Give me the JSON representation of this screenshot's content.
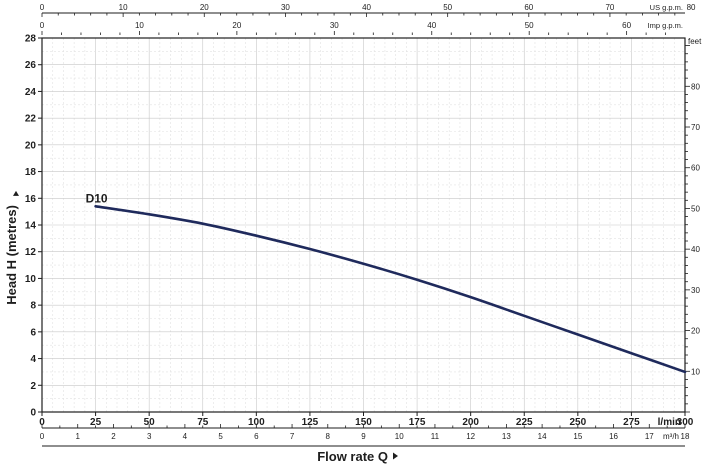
{
  "chart_data": {
    "type": "line",
    "title": "",
    "xlabel": "Flow rate Q",
    "ylabel": "Head H (metres)",
    "xlim": [
      0,
      300
    ],
    "ylim": [
      0,
      28
    ],
    "grid": true,
    "x_unit": "l/min",
    "y_ticks": [
      "0",
      "2",
      "4",
      "6",
      "8",
      "10",
      "12",
      "14",
      "16",
      "18",
      "20",
      "22",
      "24",
      "26",
      "28"
    ],
    "x_ticks": [
      "0",
      "25",
      "50",
      "75",
      "100",
      "125",
      "150",
      "175",
      "200",
      "225",
      "250",
      "275",
      "300"
    ],
    "secondary_axes": {
      "top_us_gpm": {
        "unit": "US g.p.m.",
        "max": 80,
        "ticks": [
          "0",
          "10",
          "20",
          "30",
          "40",
          "50",
          "60",
          "70",
          "80"
        ]
      },
      "top_imp_gpm": {
        "unit": "Imp g.p.m.",
        "max": 65,
        "ticks": [
          "0",
          "10",
          "20",
          "30",
          "40",
          "50",
          "60"
        ]
      },
      "right_feet": {
        "unit": "feet",
        "max": 90,
        "ticks": [
          "10",
          "20",
          "30",
          "40",
          "50",
          "60",
          "70",
          "80"
        ]
      },
      "bottom_m3h": {
        "unit": "m³/h",
        "max": 18,
        "ticks": [
          "0",
          "1",
          "2",
          "3",
          "4",
          "5",
          "6",
          "7",
          "8",
          "9",
          "10",
          "11",
          "12",
          "13",
          "14",
          "15",
          "16",
          "17",
          "18"
        ]
      }
    },
    "series": [
      {
        "name": "D10",
        "color": "#1f2a5c",
        "x": [
          25,
          50,
          75,
          100,
          125,
          150,
          175,
          200,
          225,
          250,
          275,
          300
        ],
        "y": [
          15.4,
          14.8,
          14.1,
          13.2,
          12.2,
          11.1,
          9.9,
          8.6,
          7.2,
          5.8,
          4.4,
          3.0
        ]
      }
    ]
  }
}
